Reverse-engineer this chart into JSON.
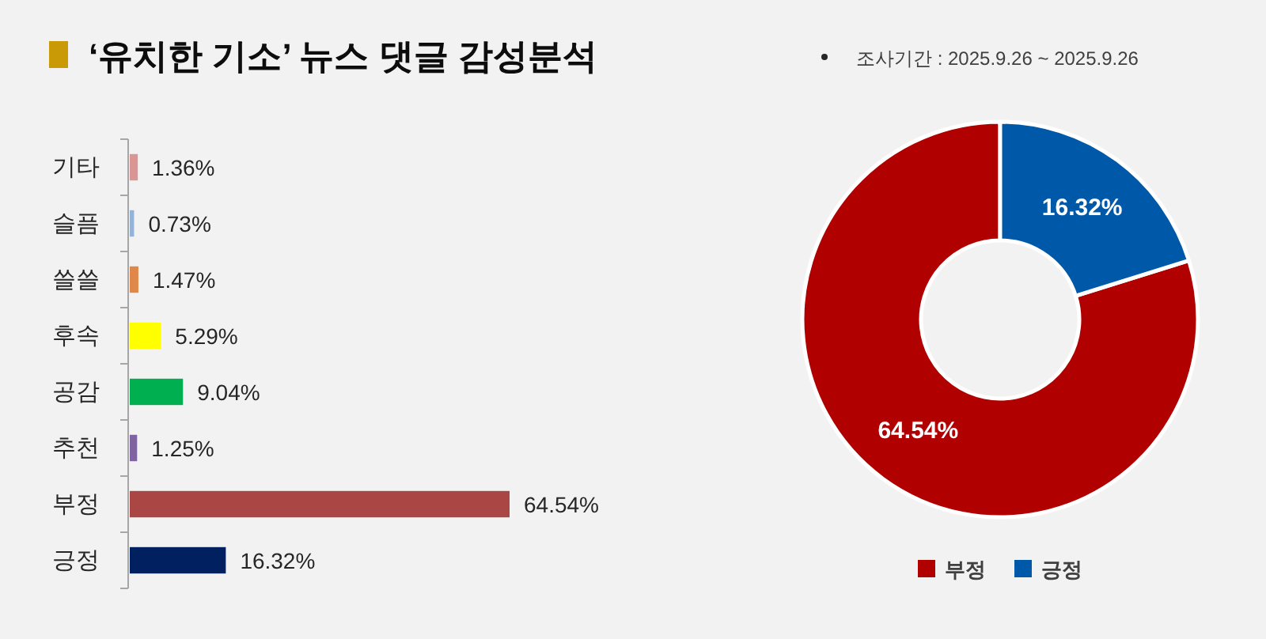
{
  "chart_data": [
    {
      "type": "bar",
      "title": "‘유치한 기소’ 뉴스 댓글 감성분석",
      "orientation": "horizontal",
      "categories": [
        "기타",
        "슬픔",
        "쓸쓸",
        "후속",
        "공감",
        "추천",
        "부정",
        "긍정"
      ],
      "values": [
        1.36,
        0.73,
        1.47,
        5.29,
        9.04,
        1.25,
        64.54,
        16.32
      ],
      "colors": [
        "#d99694",
        "#95b3d7",
        "#e0884a",
        "#ffff00",
        "#00b050",
        "#8064a2",
        "#aa4643",
        "#002060"
      ],
      "value_labels": [
        "1.36%",
        "0.73%",
        "1.47%",
        "5.29%",
        "9.04%",
        "1.25%",
        "64.54%",
        "16.32%"
      ]
    },
    {
      "type": "donut",
      "annotations": [
        "조사기간 : 2025.9.26 ~ 2025.9.26"
      ],
      "categories": [
        "부정",
        "긍정"
      ],
      "values": [
        64.54,
        16.32
      ],
      "colors": [
        "#b00000",
        "#0058a8"
      ],
      "value_labels": [
        "64.54%",
        "16.32%"
      ],
      "legend": "bottom"
    }
  ]
}
